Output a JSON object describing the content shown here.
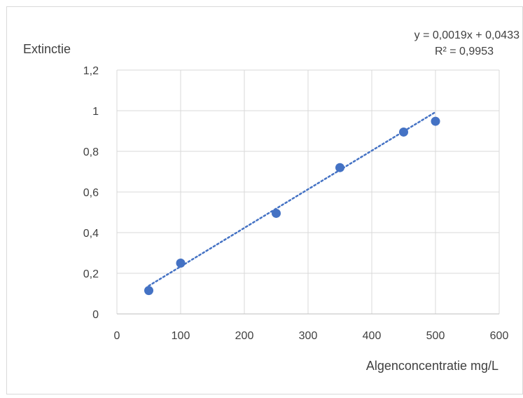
{
  "chart_data": {
    "type": "scatter",
    "ylabel": "Extinctie",
    "xlabel": "Algenconcentratie mg/L",
    "xlim": [
      0,
      600
    ],
    "ylim": [
      0,
      1.2
    ],
    "x_ticks": [
      0,
      100,
      200,
      300,
      400,
      500,
      600
    ],
    "y_ticks": [
      0,
      0.2,
      0.4,
      0.6,
      0.8,
      1,
      1.2
    ],
    "x_tick_labels": [
      "0",
      "100",
      "200",
      "300",
      "400",
      "500",
      "600"
    ],
    "y_tick_labels": [
      "0",
      "0,2",
      "0,4",
      "0,6",
      "0,8",
      "1",
      "1,2"
    ],
    "grid": true,
    "series": [
      {
        "color": "#4472C4",
        "points": [
          {
            "x": 50,
            "y": 0.115
          },
          {
            "x": 100,
            "y": 0.25
          },
          {
            "x": 250,
            "y": 0.495
          },
          {
            "x": 350,
            "y": 0.72
          },
          {
            "x": 450,
            "y": 0.895
          },
          {
            "x": 500,
            "y": 0.948
          }
        ]
      }
    ],
    "trendline": {
      "type": "linear",
      "slope": 0.0019,
      "intercept": 0.0433,
      "x_range": [
        50,
        500
      ],
      "color": "#4472C4",
      "style": "dotted",
      "equation_label": "y = 0,0019x + 0,0433",
      "r2_label": "R² = 0,9953"
    }
  }
}
